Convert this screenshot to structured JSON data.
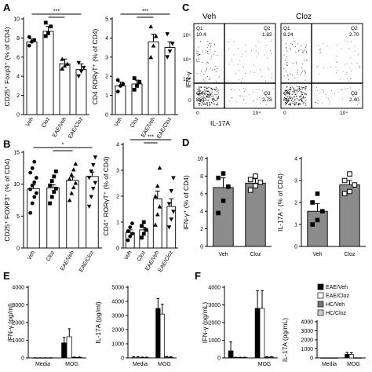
{
  "panel_labels": [
    "A",
    "B",
    "C",
    "D",
    "E",
    "F"
  ],
  "sig": {
    "three": "***",
    "one": "*"
  },
  "chart_data": [
    {
      "id": "A1",
      "type": "bar",
      "categories": [
        "Veh",
        "Cloz",
        "EAE/Veh",
        "EAE/Cloz"
      ],
      "values": [
        7.6,
        8.7,
        5.3,
        4.7
      ],
      "errors": [
        0.3,
        0.5,
        0.5,
        0.6
      ],
      "points": [
        [
          7.2,
          7.6,
          7.8,
          8.1
        ],
        [
          8.2,
          8.5,
          9.2,
          9.6
        ],
        [
          4.8,
          5.1,
          5.3,
          5.8
        ],
        [
          4.0,
          4.5,
          4.9,
          5.4
        ]
      ],
      "markers": [
        "circle",
        "square",
        "triangle",
        "down-triangle"
      ],
      "fills": [
        "#ffffff",
        "#ffffff",
        "#ffffff",
        "#ffffff"
      ],
      "ylim": [
        0,
        10
      ],
      "yticks": [
        0,
        2,
        4,
        6,
        8,
        10
      ],
      "ylabel": "CD25⁺ Foxp3⁺ (% of CD4)",
      "annotation": "***"
    },
    {
      "id": "A2",
      "type": "bar",
      "categories": [
        "Veh",
        "Cloz",
        "EAE/Veh",
        "EAE/Cloz"
      ],
      "values": [
        1.5,
        1.6,
        3.8,
        3.5
      ],
      "errors": [
        0.2,
        0.2,
        0.4,
        0.3
      ],
      "points": [
        [
          1.2,
          1.5,
          1.6,
          1.8
        ],
        [
          1.3,
          1.5,
          1.7,
          1.9
        ],
        [
          3.0,
          3.6,
          4.1,
          4.6
        ],
        [
          3.0,
          3.3,
          3.7,
          4.2
        ]
      ],
      "markers": [
        "circle",
        "square",
        "triangle",
        "down-triangle"
      ],
      "fills": [
        "#ffffff",
        "#ffffff",
        "#ffffff",
        "#ffffff"
      ],
      "ylim": [
        0,
        5
      ],
      "yticks": [
        0,
        1,
        2,
        3,
        4,
        5
      ],
      "ylabel": "CD4 RORγT⁺ (% of CD4)",
      "annotation": "***"
    },
    {
      "id": "B1",
      "type": "bar",
      "categories": [
        "Veh",
        "Cloz",
        "EAE/Veh",
        "EAE/Cloz"
      ],
      "values": [
        9.3,
        9.4,
        10.6,
        11.2
      ],
      "errors": [
        0.6,
        0.5,
        0.5,
        0.7
      ],
      "points": [
        [
          5.5,
          7,
          8,
          8.6,
          9.2,
          9.8,
          10.3,
          11,
          11.8,
          12.5,
          13.5
        ],
        [
          7,
          8,
          8.8,
          9.3,
          9.8,
          10.5,
          11.2,
          12
        ],
        [
          7.5,
          8.6,
          9.5,
          10.2,
          10.8,
          11.5,
          12.3,
          13.2
        ],
        [
          6.5,
          8,
          9.3,
          10.2,
          11,
          12,
          13,
          14.2
        ]
      ],
      "markers": [
        "circle",
        "square",
        "triangle",
        "down-triangle"
      ],
      "fills": [
        "#ffffff",
        "#ffffff",
        "#ffffff",
        "#ffffff"
      ],
      "ylim": [
        0,
        15
      ],
      "yticks": [
        0,
        5,
        10,
        15
      ],
      "ylabel": "CD25⁺ FOXP3⁺ (% of CD4)",
      "annotation": "*"
    },
    {
      "id": "B2",
      "type": "bar",
      "categories": [
        "Veh",
        "Cloz",
        "EAE/Veh",
        "EAE/Cloz"
      ],
      "values": [
        0.6,
        0.7,
        1.9,
        1.6
      ],
      "errors": [
        0.1,
        0.1,
        0.3,
        0.3
      ],
      "points": [
        [
          0.3,
          0.45,
          0.55,
          0.65,
          0.8,
          0.95
        ],
        [
          0.4,
          0.55,
          0.7,
          0.85,
          1.0
        ],
        [
          0.9,
          1.3,
          1.6,
          2.0,
          2.4,
          3.1
        ],
        [
          0.8,
          1.1,
          1.4,
          1.7,
          2.2,
          2.7
        ]
      ],
      "markers": [
        "circle",
        "square",
        "triangle",
        "down-triangle"
      ],
      "fills": [
        "#ffffff",
        "#ffffff",
        "#ffffff",
        "#ffffff"
      ],
      "ylim": [
        0,
        4
      ],
      "yticks": [
        0,
        1,
        2,
        3,
        4
      ],
      "ylabel": "CD4⁺ RORγT⁺ (% of CD4)",
      "annotation": "***"
    },
    {
      "id": "D1",
      "type": "bar",
      "categories": [
        "Veh",
        "Cloz"
      ],
      "values": [
        6.7,
        7.2
      ],
      "errors": [
        1.1,
        0.5
      ],
      "points": [
        [
          3.8,
          5.2,
          6.8,
          7.8,
          8.3
        ],
        [
          6.4,
          6.9,
          7.3,
          7.6,
          8.0
        ]
      ],
      "markers": [
        "filled-square",
        "open-square"
      ],
      "fills": [
        "#8c8c8c",
        "#8c8c8c"
      ],
      "ylim": [
        0,
        10
      ],
      "yticks": [
        0,
        2,
        4,
        6,
        8,
        10
      ],
      "ylabel": "IFN-γ⁺ (% of CD4)"
    },
    {
      "id": "D2",
      "type": "bar",
      "categories": [
        "Veh",
        "Cloz"
      ],
      "values": [
        1.6,
        2.8
      ],
      "errors": [
        0.35,
        0.2
      ],
      "points": [
        [
          1.0,
          1.2,
          1.6,
          2.0,
          2.4
        ],
        [
          2.4,
          2.5,
          2.8,
          3.0,
          3.3
        ]
      ],
      "markers": [
        "filled-square",
        "open-square"
      ],
      "fills": [
        "#8c8c8c",
        "#8c8c8c"
      ],
      "ylim": [
        0,
        4
      ],
      "yticks": [
        0,
        1,
        2,
        3,
        4
      ],
      "ylabel": "IL-17A⁺ (% of CD4)"
    },
    {
      "id": "E1",
      "type": "bar",
      "categories": [
        "Media",
        "MOG"
      ],
      "series": [
        {
          "name": "EAE/Veh",
          "values": [
            5,
            850
          ],
          "errors": [
            5,
            300
          ]
        },
        {
          "name": "EAE/Cloz",
          "values": [
            5,
            1200
          ],
          "errors": [
            5,
            450
          ]
        },
        {
          "name": "HC/Veh",
          "values": [
            5,
            30
          ],
          "errors": [
            5,
            20
          ]
        },
        {
          "name": "HC/Cloz",
          "values": [
            5,
            30
          ],
          "errors": [
            5,
            20
          ]
        }
      ],
      "ylim": [
        0,
        4000
      ],
      "yticks": [
        0,
        1000,
        2000,
        3000,
        4000
      ],
      "ylabel": "IFN-γ (pg/ml)"
    },
    {
      "id": "E2",
      "type": "bar",
      "categories": [
        "Media",
        "MOG"
      ],
      "series": [
        {
          "name": "EAE/Veh",
          "values": [
            20,
            3500
          ],
          "errors": [
            60,
            700
          ]
        },
        {
          "name": "EAE/Cloz",
          "values": [
            20,
            3100
          ],
          "errors": [
            60,
            700
          ]
        },
        {
          "name": "HC/Veh",
          "values": [
            20,
            60
          ],
          "errors": [
            40,
            40
          ]
        },
        {
          "name": "HC/Cloz",
          "values": [
            20,
            40
          ],
          "errors": [
            40,
            40
          ]
        }
      ],
      "ylim": [
        0,
        5000
      ],
      "yticks": [
        0,
        1000,
        2000,
        3000,
        4000,
        5000
      ],
      "ylabel": "IL-17A (pg/ml)"
    },
    {
      "id": "F1",
      "type": "bar",
      "categories": [
        "",
        "MOG"
      ],
      "series": [
        {
          "name": "EAE/Veh",
          "values": [
            400,
            2800
          ],
          "errors": [
            500,
            1000
          ]
        },
        {
          "name": "EAE/Cloz",
          "values": [
            20,
            2800
          ],
          "errors": [
            20,
            1000
          ]
        },
        {
          "name": "HC/Veh",
          "values": [
            20,
            40
          ],
          "errors": [
            20,
            30
          ]
        },
        {
          "name": "HC/Cloz",
          "values": [
            20,
            40
          ],
          "errors": [
            20,
            30
          ]
        }
      ],
      "ylim": [
        0,
        4000
      ],
      "yticks": [
        0,
        1000,
        2000,
        3000,
        4000
      ],
      "ylabel": "IFN-γ (pg/mL)"
    },
    {
      "id": "F2",
      "type": "bar",
      "categories": [
        "Media",
        "MOG"
      ],
      "series": [
        {
          "name": "EAE/Veh",
          "values": [
            2,
            400
          ],
          "errors": [
            2,
            200
          ]
        },
        {
          "name": "EAE/Cloz",
          "values": [
            2,
            380
          ],
          "errors": [
            2,
            200
          ]
        },
        {
          "name": "HC/Veh",
          "values": [
            2,
            5
          ],
          "errors": [
            2,
            5
          ]
        },
        {
          "name": "HC/Cloz",
          "values": [
            2,
            5
          ],
          "errors": [
            2,
            5
          ]
        }
      ],
      "ylim": [
        0,
        4000
      ],
      "yticks": [
        0,
        1000,
        2000,
        3000,
        4000
      ],
      "ylabel": "IL-17A (pg/mL)",
      "legend": [
        "EAE/Veh",
        "EAE/Cloz",
        "HC/Veh",
        "HC/Cloz"
      ],
      "legend_placement": "top-right"
    }
  ],
  "flow": {
    "plots": [
      {
        "title": "Veh",
        "quadrants": [
          {
            "name": "Q1",
            "value": "10.4"
          },
          {
            "name": "Q2",
            "value": "1.82"
          },
          {
            "name": "Q4",
            "value": "85.0"
          },
          {
            "name": "Q3",
            "value": "2.73"
          }
        ]
      },
      {
        "title": "Cloz",
        "quadrants": [
          {
            "name": "Q1",
            "value": "8.24"
          },
          {
            "name": "Q2",
            "value": "2.70"
          },
          {
            "name": "Q4",
            "value": "86.7"
          },
          {
            "name": "Q3",
            "value": "2.40"
          }
        ]
      }
    ],
    "xlabel": "IL-17A",
    "ylabel": "IFN-γ",
    "ticks": {
      "e5": "10⁵",
      "e4": "10⁴",
      "e3": "10³",
      "zero": "0"
    }
  },
  "colors": {
    "black": "#000000",
    "white": "#ffffff",
    "grey_bar": "#8c8c8c",
    "series_fill": [
      "#000000",
      "#ffffff",
      "#777777",
      "#d0d0d0"
    ]
  }
}
